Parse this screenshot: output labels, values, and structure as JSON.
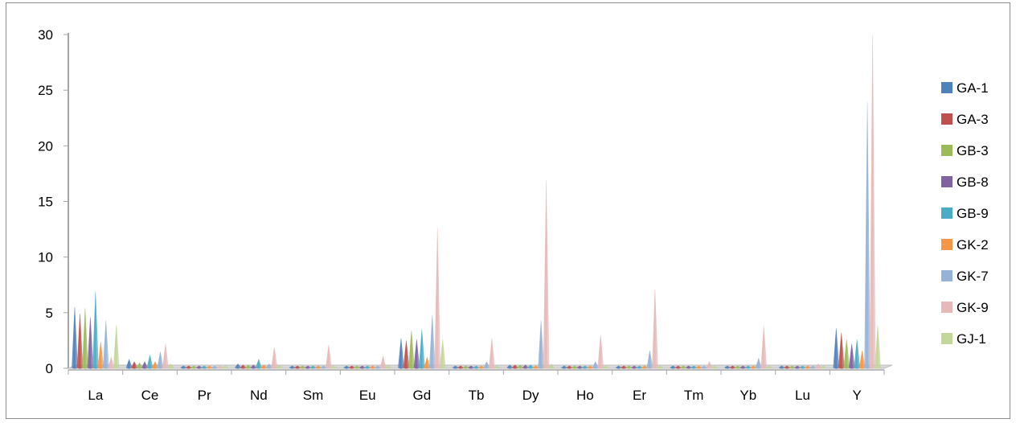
{
  "chart_data": {
    "type": "bar",
    "style": "3d-cone",
    "categories": [
      "La",
      "Ce",
      "Pr",
      "Nd",
      "Sm",
      "Eu",
      "Gd",
      "Tb",
      "Dy",
      "Ho",
      "Er",
      "Tm",
      "Yb",
      "Lu",
      "Y"
    ],
    "ylim": [
      0,
      30
    ],
    "yticks": [
      0,
      5,
      10,
      15,
      20,
      25,
      30
    ],
    "grid": false,
    "legend_position": "right",
    "series": [
      {
        "name": "GA-1",
        "color": "#4f81bd",
        "values": [
          5.5,
          0.8,
          0.1,
          0.4,
          0.1,
          0.05,
          2.7,
          0.1,
          0.3,
          0.1,
          0.2,
          0.1,
          0.1,
          0.05,
          3.6
        ]
      },
      {
        "name": "GA-3",
        "color": "#c0504d",
        "values": [
          4.9,
          0.6,
          0.1,
          0.3,
          0.1,
          0.05,
          2.5,
          0.1,
          0.3,
          0.1,
          0.2,
          0.1,
          0.1,
          0.05,
          3.2
        ]
      },
      {
        "name": "GB-3",
        "color": "#9bbb59",
        "values": [
          5.4,
          0.5,
          0.1,
          0.3,
          0.1,
          0.05,
          3.4,
          0.1,
          0.3,
          0.1,
          0.2,
          0.1,
          0.1,
          0.05,
          2.6
        ]
      },
      {
        "name": "GB-8",
        "color": "#8064a2",
        "values": [
          4.6,
          0.6,
          0.1,
          0.3,
          0.1,
          0.05,
          2.6,
          0.1,
          0.3,
          0.1,
          0.2,
          0.1,
          0.1,
          0.05,
          2.2
        ]
      },
      {
        "name": "GB-9",
        "color": "#4bacc6",
        "values": [
          6.9,
          1.2,
          0.1,
          0.8,
          0.1,
          0.05,
          3.5,
          0.1,
          0.3,
          0.1,
          0.2,
          0.1,
          0.1,
          0.05,
          2.6
        ]
      },
      {
        "name": "GK-2",
        "color": "#f79646",
        "values": [
          2.4,
          0.6,
          0.1,
          0.3,
          0.1,
          0.05,
          1.0,
          0.1,
          0.2,
          0.1,
          0.1,
          0.1,
          0.1,
          0.05,
          1.6
        ]
      },
      {
        "name": "GK-7",
        "color": "#95b3d7",
        "values": [
          4.3,
          1.5,
          0.1,
          0.4,
          0.1,
          0.05,
          4.8,
          0.6,
          4.3,
          0.6,
          1.6,
          0.2,
          0.9,
          0.1,
          23.9
        ]
      },
      {
        "name": "GK-9",
        "color": "#e6b9b8",
        "values": [
          1.0,
          2.2,
          0.2,
          1.9,
          2.1,
          1.1,
          12.6,
          2.7,
          16.9,
          3.0,
          7.1,
          0.6,
          3.8,
          0.4,
          29.9
        ]
      },
      {
        "name": "GJ-1",
        "color": "#c3d69b",
        "values": [
          3.9,
          0.4,
          0.1,
          0.3,
          0.1,
          0.05,
          2.6,
          0.1,
          0.4,
          0.1,
          0.2,
          0.1,
          0.1,
          0.05,
          3.9
        ]
      }
    ]
  }
}
